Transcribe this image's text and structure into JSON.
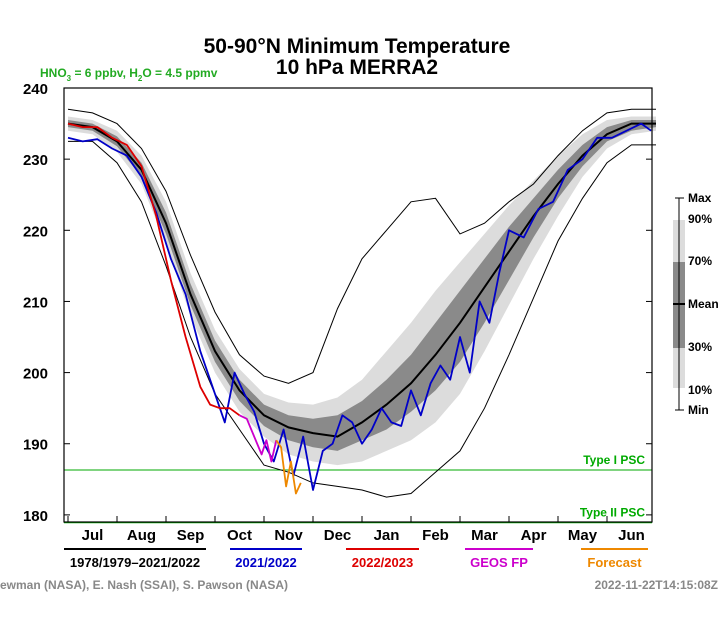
{
  "chart_data": {
    "type": "line",
    "title_line1": "50-90°N Minimum Temperature",
    "title_line2": "10 hPa   MERRA2",
    "chem_note": "HNO3 = 6 ppbv, H2O = 4.5 ppmv",
    "chem_note_parts": {
      "hno": "HNO",
      "hno_sub": "3",
      "mid": " = 6 ppbv, H",
      "h2o_sub": "2",
      "end": "O = 4.5 ppmv"
    },
    "ylim": [
      179,
      240
    ],
    "y_ticks": [
      180,
      190,
      200,
      210,
      220,
      230,
      240
    ],
    "months": [
      "Jul",
      "Aug",
      "Sep",
      "Oct",
      "Nov",
      "Dec",
      "Jan",
      "Feb",
      "Mar",
      "Apr",
      "May",
      "Jun"
    ],
    "psc_lines": [
      {
        "label": "Type I PSC",
        "value": 186.3
      },
      {
        "label": "Type II PSC",
        "value": 178.9
      }
    ],
    "side_legend": {
      "max": "Max",
      "p90": "90%",
      "p70": "70%",
      "mean": "Mean",
      "p30": "30%",
      "p10": "10%",
      "min": "Min"
    },
    "legend": [
      {
        "label": "1978/1979–2021/2022",
        "color": "#000000"
      },
      {
        "label": "2021/2022",
        "color": "#0000c8"
      },
      {
        "label": "2022/2023",
        "color": "#dd0000"
      },
      {
        "label": "GEOS FP",
        "color": "#cc00cc"
      },
      {
        "label": "Forecast",
        "color": "#ee8800"
      }
    ],
    "x_unit": "month_index",
    "climatology": {
      "x": [
        0,
        0.5,
        1,
        1.5,
        2,
        2.5,
        3,
        3.5,
        4,
        4.5,
        5,
        5.5,
        6,
        6.5,
        7,
        7.5,
        8,
        8.5,
        9,
        9.5,
        10,
        10.5,
        11,
        11.5,
        12
      ],
      "mean": [
        235,
        234.5,
        232.5,
        228.5,
        221,
        211,
        203,
        197.5,
        194,
        192.3,
        191.5,
        191,
        193,
        195.5,
        198.5,
        202.5,
        207,
        212,
        217,
        222,
        226.5,
        230.5,
        233.5,
        235,
        235
      ],
      "p30": [
        234.5,
        234,
        231.8,
        227.5,
        219.5,
        209.5,
        201.5,
        196,
        192.5,
        190.5,
        189.5,
        189,
        190.5,
        192,
        194.5,
        197.5,
        201.5,
        207,
        213,
        219,
        224.5,
        229,
        232.5,
        234,
        234.5
      ],
      "p70": [
        235.5,
        235,
        233.2,
        229.5,
        222.5,
        212.5,
        204.5,
        199,
        195.5,
        194,
        193.5,
        194,
        196,
        199,
        202.5,
        207,
        211.5,
        216,
        220.5,
        224.5,
        228.5,
        232,
        234.5,
        235.5,
        235.5
      ],
      "p10": [
        234,
        233.5,
        231,
        226.5,
        218,
        208,
        200,
        194.5,
        191,
        188.5,
        187.5,
        187,
        187.5,
        189,
        190.5,
        193,
        197,
        203,
        209.5,
        216,
        222,
        227.5,
        231.5,
        233.5,
        234
      ],
      "p90": [
        236,
        235.5,
        234,
        230.5,
        224,
        214,
        206,
        200.5,
        197,
        195.8,
        195.5,
        196.5,
        199,
        203,
        207,
        211.5,
        215.5,
        219.5,
        223.5,
        227,
        230.5,
        233.5,
        235.5,
        236,
        236
      ],
      "min": [
        232.5,
        232.5,
        229.5,
        224,
        215,
        205,
        197,
        192,
        187,
        186,
        184.5,
        184,
        183.5,
        182.5,
        183,
        186,
        189,
        195,
        202.5,
        210.5,
        218.5,
        224.5,
        229.5,
        232,
        232
      ],
      "max": [
        237,
        236.5,
        235,
        231.5,
        225.5,
        216.5,
        208.5,
        202.5,
        199.5,
        198.5,
        200,
        209,
        216,
        220,
        224,
        224.5,
        219.5,
        221,
        224,
        226.5,
        230.5,
        234,
        236.5,
        237,
        237
      ]
    },
    "series": [
      {
        "name": "2021/2022",
        "color": "#0000c8",
        "x": [
          0,
          0.3,
          0.6,
          0.9,
          1.2,
          1.5,
          1.8,
          2.1,
          2.4,
          2.7,
          3.0,
          3.2,
          3.4,
          3.6,
          3.8,
          4.0,
          4.2,
          4.4,
          4.6,
          4.8,
          5.0,
          5.2,
          5.4,
          5.6,
          5.8,
          6.0,
          6.2,
          6.4,
          6.6,
          6.8,
          7.0,
          7.2,
          7.4,
          7.6,
          7.8,
          8.0,
          8.2,
          8.4,
          8.6,
          8.8,
          9.0,
          9.3,
          9.6,
          9.9,
          10.2,
          10.5,
          10.8,
          11.1,
          11.4,
          11.7,
          11.9
        ],
        "y": [
          233,
          232.5,
          232.8,
          231.5,
          230.5,
          227.5,
          222.5,
          216,
          211,
          203,
          197,
          193,
          200,
          197,
          194.5,
          190,
          187.5,
          192,
          185.5,
          191,
          183.5,
          189,
          190,
          194,
          193,
          190,
          192,
          195,
          193,
          192.5,
          197.5,
          194,
          198.5,
          201,
          199,
          205,
          200,
          210,
          207,
          214,
          220,
          219,
          223,
          224,
          228.5,
          230,
          233,
          233,
          234,
          235,
          234
        ]
      },
      {
        "name": "2022/2023",
        "color": "#dd0000",
        "x": [
          0,
          0.3,
          0.6,
          0.9,
          1.2,
          1.5,
          1.8,
          2.1,
          2.4,
          2.7,
          2.9,
          3.1,
          3.3,
          3.5
        ],
        "y": [
          235,
          234.5,
          234.5,
          233,
          232,
          229,
          222,
          213,
          205,
          198,
          195.5,
          195,
          195,
          194
        ]
      },
      {
        "name": "GEOS FP",
        "color": "#cc00cc",
        "x": [
          3.5,
          3.65,
          3.8,
          3.95,
          4.05,
          4.15,
          4.25
        ],
        "y": [
          194,
          193.5,
          191,
          188.5,
          190.5,
          187.5,
          190.5
        ]
      },
      {
        "name": "Forecast",
        "color": "#ee8800",
        "x": [
          4.25,
          4.35,
          4.45,
          4.55,
          4.65,
          4.75
        ],
        "y": [
          190.5,
          189.5,
          184,
          187.5,
          183,
          184.5
        ]
      }
    ],
    "grid": false,
    "legend_position": "bottom"
  },
  "credits_left": "ewman (NASA), E. Nash (SSAI), S. Pawson (NASA)",
  "credits_right": "2022-11-22T14:15:08Z"
}
